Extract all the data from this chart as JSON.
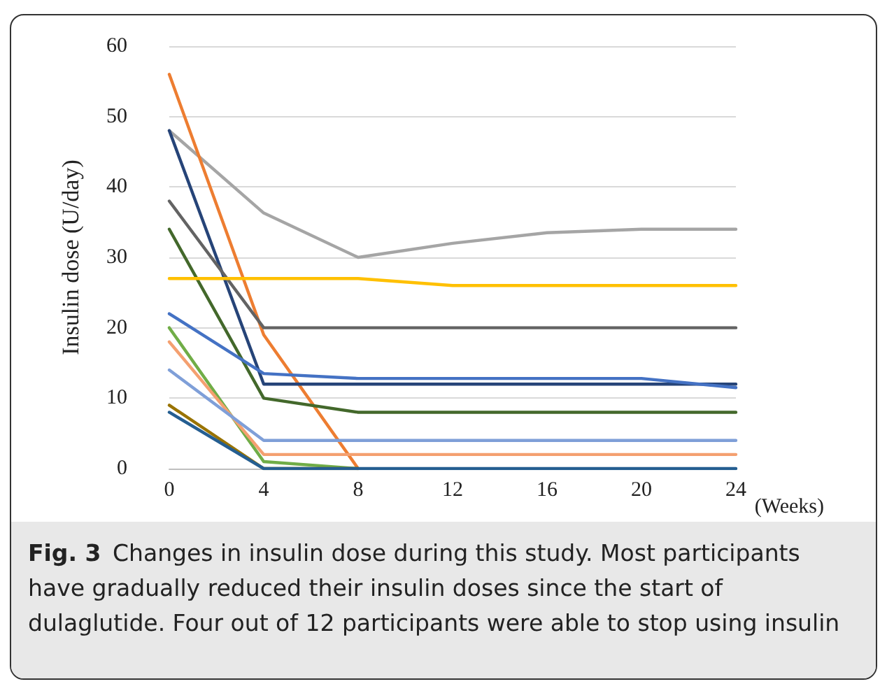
{
  "chart_data": {
    "type": "line",
    "ylabel": "Insulin dose (U/day)",
    "xlabel": "(Weeks)",
    "x": [
      0,
      4,
      8,
      12,
      16,
      20,
      24
    ],
    "xlim": [
      0,
      24
    ],
    "xticks": [
      0,
      4,
      8,
      12,
      16,
      20,
      24
    ],
    "ylim": [
      0,
      60
    ],
    "yticks": [
      0,
      10,
      20,
      30,
      40,
      50,
      60
    ],
    "grid": "y",
    "marker": "none",
    "line_style": "solid",
    "series": [
      {
        "color": "#a5a5a5",
        "values": [
          48,
          36.3,
          30,
          32,
          33.5,
          34,
          34
        ]
      },
      {
        "color": "#ed7d31",
        "values": [
          56,
          19,
          0,
          null,
          null,
          null,
          null
        ]
      },
      {
        "color": "#264478",
        "values": [
          48,
          12,
          12,
          12,
          12,
          12,
          12
        ]
      },
      {
        "color": "#636363",
        "values": [
          38,
          20,
          20,
          20,
          20,
          20,
          20
        ]
      },
      {
        "color": "#43682b",
        "values": [
          34,
          10,
          8,
          8,
          8,
          8,
          8
        ]
      },
      {
        "color": "#ffc000",
        "values": [
          27,
          27,
          27,
          26,
          26,
          26,
          26
        ]
      },
      {
        "color": "#4472c4",
        "values": [
          22,
          13.5,
          12.8,
          12.8,
          12.8,
          12.8,
          11.5
        ]
      },
      {
        "color": "#70ad47",
        "values": [
          20,
          1,
          0,
          null,
          null,
          null,
          null
        ]
      },
      {
        "color": "#f4a070",
        "values": [
          18,
          2,
          2,
          2,
          2,
          2,
          2
        ]
      },
      {
        "color": "#7f9fd8",
        "values": [
          14,
          4,
          4,
          4,
          4,
          4,
          4
        ]
      },
      {
        "color": "#997300",
        "values": [
          9,
          0,
          0,
          null,
          null,
          null,
          null
        ]
      },
      {
        "color": "#255e91",
        "values": [
          8,
          0,
          0,
          0,
          0,
          0,
          0
        ]
      }
    ],
    "annotations": [
      "Fig. 3  Changes in insulin dose during this study. Most participants have gradually reduced their insulin doses since the start of dulaglutide. Four out of 12 participants were able to stop using insulin"
    ]
  }
}
